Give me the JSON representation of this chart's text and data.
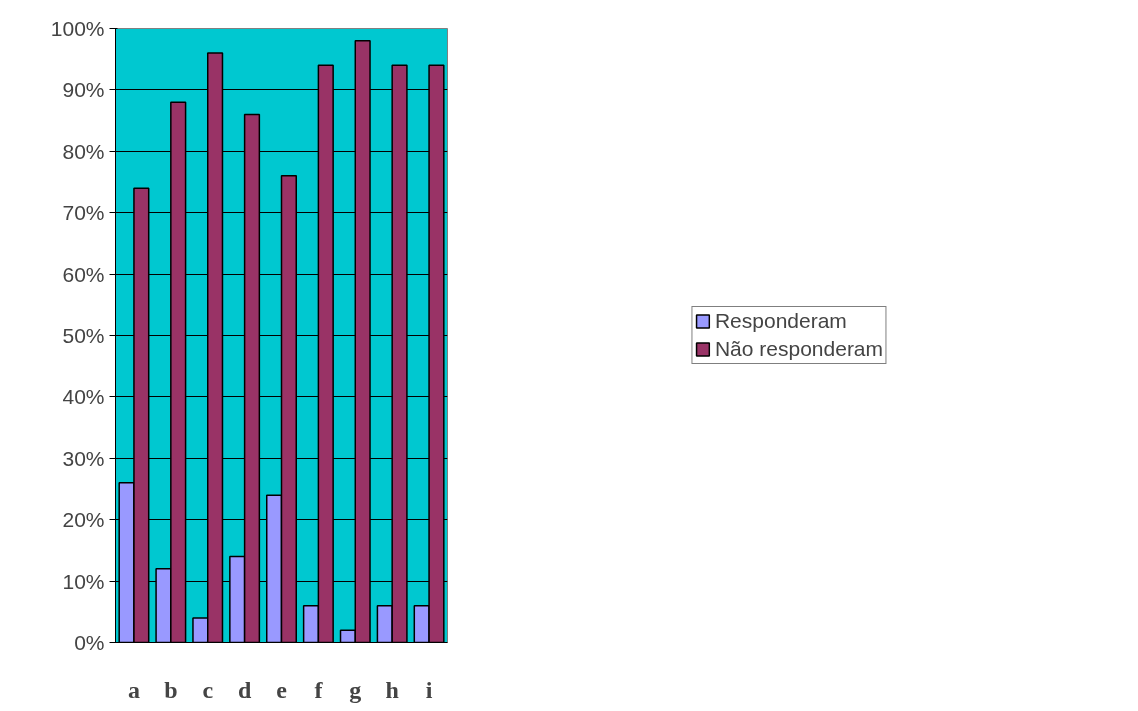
{
  "chart_data": {
    "type": "bar",
    "categories": [
      "a",
      "b",
      "c",
      "d",
      "e",
      "f",
      "g",
      "h",
      "i"
    ],
    "series": [
      {
        "name": "Responderam",
        "color": "#9999ff",
        "values": [
          26,
          12,
          4,
          14,
          24,
          6,
          2,
          6,
          6
        ]
      },
      {
        "name": "Não responderam",
        "color": "#993366",
        "values": [
          74,
          88,
          96,
          86,
          76,
          94,
          98,
          94,
          94
        ]
      }
    ],
    "ylim": [
      0,
      100
    ],
    "yticks": [
      {
        "value": 0,
        "label": "0%"
      },
      {
        "value": 10,
        "label": "10%"
      },
      {
        "value": 20,
        "label": "20%"
      },
      {
        "value": 30,
        "label": "30%"
      },
      {
        "value": 40,
        "label": "40%"
      },
      {
        "value": 50,
        "label": "50%"
      },
      {
        "value": 60,
        "label": "60%"
      },
      {
        "value": 70,
        "label": "70%"
      },
      {
        "value": 80,
        "label": "80%"
      },
      {
        "value": 90,
        "label": "90%"
      },
      {
        "value": 100,
        "label": "100%"
      }
    ],
    "grid": "y",
    "legend": "right"
  }
}
